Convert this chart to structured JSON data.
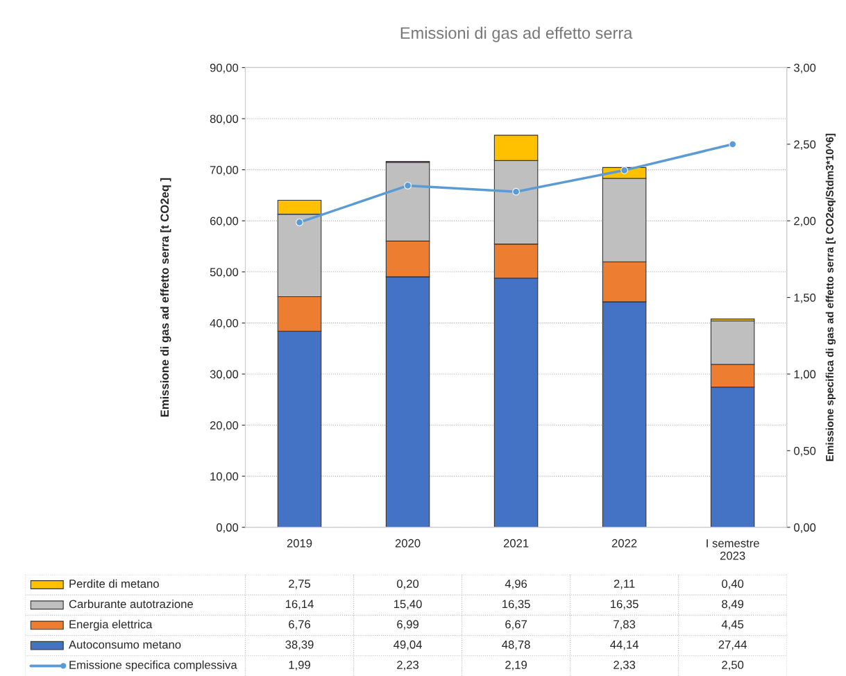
{
  "chart_data": {
    "type": "bar",
    "stacked": true,
    "title": "Emissioni di gas ad effetto serra",
    "ylabel": "Emissione di gas ad effetto serra [t CO2eq ]",
    "y2label": "Emissione specifica di gas ad effetto serra [t CO2eq/Stdm3*10^6]",
    "categories": [
      "2019",
      "2020",
      "2021",
      "2022",
      "I semestre\n2023"
    ],
    "series": [
      {
        "name": "Autoconsumo metano",
        "color": "#4472c4",
        "values": [
          38.39,
          49.04,
          48.78,
          44.14,
          27.44
        ],
        "value_labels": [
          "38,39",
          "49,04",
          "48,78",
          "44,14",
          "27,44"
        ]
      },
      {
        "name": "Energia elettrica",
        "color": "#ed7d31",
        "values": [
          6.76,
          6.99,
          6.67,
          7.83,
          4.45
        ],
        "value_labels": [
          "6,76",
          "6,99",
          "6,67",
          "7,83",
          "4,45"
        ]
      },
      {
        "name": "Carburante autotrazione",
        "color": "#bfbfbf",
        "values": [
          16.14,
          15.4,
          16.35,
          16.35,
          8.49
        ],
        "value_labels": [
          "16,14",
          "15,40",
          "16,35",
          "16,35",
          "8,49"
        ]
      },
      {
        "name": "Perdite di metano",
        "color": "#ffc000",
        "values": [
          2.75,
          0.2,
          4.96,
          2.11,
          0.4
        ],
        "value_labels": [
          "2,75",
          "0,20",
          "4,96",
          "2,11",
          "0,40"
        ]
      },
      {
        "name": "Emissione specifica complessiva",
        "type": "line",
        "axis": "y2",
        "color": "#5b9bd5",
        "marker": "circle",
        "values": [
          1.99,
          2.23,
          2.19,
          2.33,
          2.5
        ],
        "value_labels": [
          "1,99",
          "2,23",
          "2,19",
          "2,33",
          "2,50"
        ]
      }
    ],
    "ylim": [
      0,
      90
    ],
    "yticks": [
      {
        "value": 0,
        "label": "0,00"
      },
      {
        "value": 10,
        "label": "10,00"
      },
      {
        "value": 20,
        "label": "20,00"
      },
      {
        "value": 30,
        "label": "30,00"
      },
      {
        "value": 40,
        "label": "40,00"
      },
      {
        "value": 50,
        "label": "50,00"
      },
      {
        "value": 60,
        "label": "60,00"
      },
      {
        "value": 70,
        "label": "70,00"
      },
      {
        "value": 80,
        "label": "80,00"
      },
      {
        "value": 90,
        "label": "90,00"
      }
    ],
    "y2lim": [
      0,
      3
    ],
    "y2ticks": [
      {
        "value": 0,
        "label": "0,00"
      },
      {
        "value": 0.5,
        "label": "0,50"
      },
      {
        "value": 1,
        "label": "1,00"
      },
      {
        "value": 1.5,
        "label": "1,50"
      },
      {
        "value": 2,
        "label": "2,00"
      },
      {
        "value": 2.5,
        "label": "2,50"
      },
      {
        "value": 3,
        "label": "3,00"
      }
    ],
    "grid": "y",
    "legend": "bottom"
  }
}
